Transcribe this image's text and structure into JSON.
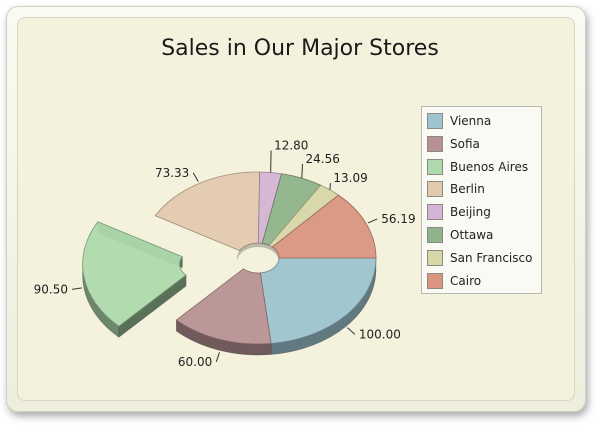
{
  "chart_data": {
    "type": "pie",
    "title": "Sales in Our Major Stores",
    "categories": [
      "Vienna",
      "Sofia",
      "Buenos Aires",
      "Berlin",
      "Beijing",
      "Ottawa",
      "San Francisco",
      "Cairo"
    ],
    "values": [
      100.0,
      60.0,
      90.5,
      73.33,
      12.8,
      24.56,
      13.09,
      56.19
    ],
    "value_labels": [
      "100.00",
      "60.00",
      "90.50",
      "73.33",
      "12.80",
      "24.56",
      "13.09",
      "56.19"
    ],
    "colors": [
      "#9cc3cf",
      "#b79192",
      "#aed9ac",
      "#e2c9ae",
      "#d4b4d4",
      "#8fb38a",
      "#d6d6a6",
      "#d99580"
    ],
    "exploded": "Buenos Aires",
    "style": "3d-doughnut",
    "legend_position": "right"
  }
}
